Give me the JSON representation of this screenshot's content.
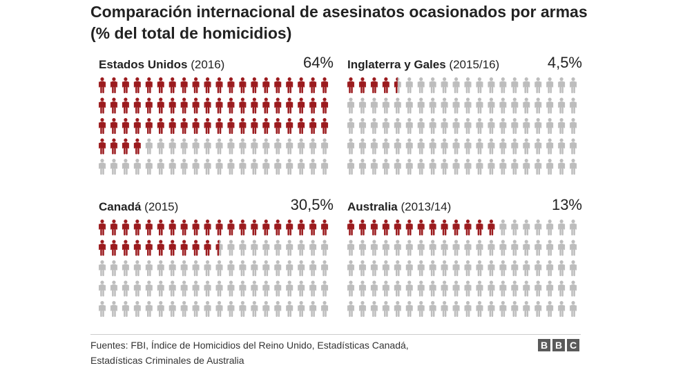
{
  "title": "Comparación internacional de asesinatos ocasionados por armas (% del total de homicidios)",
  "colors": {
    "highlight": "#9b1b1e",
    "base": "#bdbdbd",
    "text": "#222222"
  },
  "icon": "person-icon",
  "chart_data": {
    "type": "pictogram",
    "title": "Comparación internacional de asesinatos ocasionados por armas (% del total de homicidios)",
    "unit": "%",
    "panels": [
      {
        "country": "Estados Unidos",
        "period": "(2016)",
        "label": "64%",
        "value": 64
      },
      {
        "country": "Inglaterra y Gales",
        "period": "(2015/16)",
        "label": "4,5%",
        "value": 4.5
      },
      {
        "country": "Canadá",
        "period": "(2015)",
        "label": "30,5%",
        "value": 30.5
      },
      {
        "country": "Australia",
        "period": "(2013/14)",
        "label": "13%",
        "value": 13
      }
    ]
  },
  "footer": {
    "source_line1": "Fuentes: FBI, Índice de Homicidios del Reino Unido, Estadísticas Canadá,",
    "source_line2": "Estadísticas Criminales de Australia",
    "logo": [
      "B",
      "B",
      "C"
    ]
  }
}
